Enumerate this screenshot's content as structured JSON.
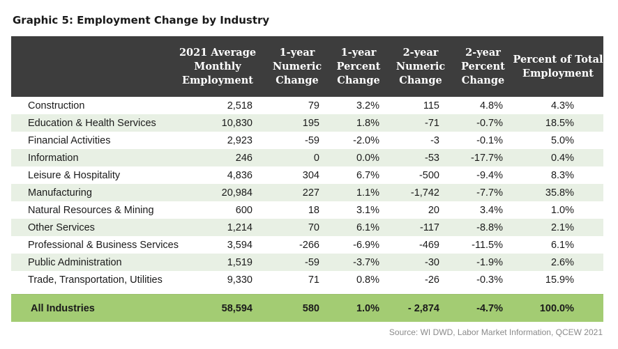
{
  "title": "Graphic 5: Employment Change by Industry",
  "colors": {
    "header_bg": "#3d3d3d",
    "row_shade": "#e8f0e4",
    "total_bg": "#a3cc73"
  },
  "headers": [
    "",
    "2021 Average Monthly Employment",
    "1-year Numeric Change",
    "1-year Percent Change",
    "2-year Numeric Change",
    "2-year Percent Change",
    "Percent of Total Employment"
  ],
  "rows": [
    [
      "Construction",
      "2,518",
      "79",
      "3.2%",
      "115",
      "4.8%",
      "4.3%"
    ],
    [
      "Education & Health Services",
      "10,830",
      "195",
      "1.8%",
      "-71",
      "-0.7%",
      "18.5%"
    ],
    [
      "Financial Activities",
      "2,923",
      "-59",
      "-2.0%",
      "-3",
      "-0.1%",
      "5.0%"
    ],
    [
      "Information",
      "246",
      "0",
      "0.0%",
      "-53",
      "-17.7%",
      "0.4%"
    ],
    [
      "Leisure & Hospitality",
      "4,836",
      "304",
      "6.7%",
      "-500",
      "-9.4%",
      "8.3%"
    ],
    [
      "Manufacturing",
      "20,984",
      "227",
      "1.1%",
      "-1,742",
      "-7.7%",
      "35.8%"
    ],
    [
      "Natural Resources & Mining",
      "600",
      "18",
      "3.1%",
      "20",
      "3.4%",
      "1.0%"
    ],
    [
      "Other Services",
      "1,214",
      "70",
      "6.1%",
      "-117",
      "-8.8%",
      "2.1%"
    ],
    [
      "Professional & Business Services",
      "3,594",
      "-266",
      "-6.9%",
      "-469",
      "-11.5%",
      "6.1%"
    ],
    [
      "Public Administration",
      "1,519",
      "-59",
      "-3.7%",
      "-30",
      "-1.9%",
      "2.6%"
    ],
    [
      "Trade, Transportation, Utilities",
      "9,330",
      "71",
      "0.8%",
      "-26",
      "-0.3%",
      "15.9%"
    ]
  ],
  "total": [
    "All Industries",
    "58,594",
    "580",
    "1.0%",
    "- 2,874",
    "-4.7%",
    "100.0%"
  ],
  "source": "Source: WI DWD, Labor Market Information, QCEW 2021"
}
